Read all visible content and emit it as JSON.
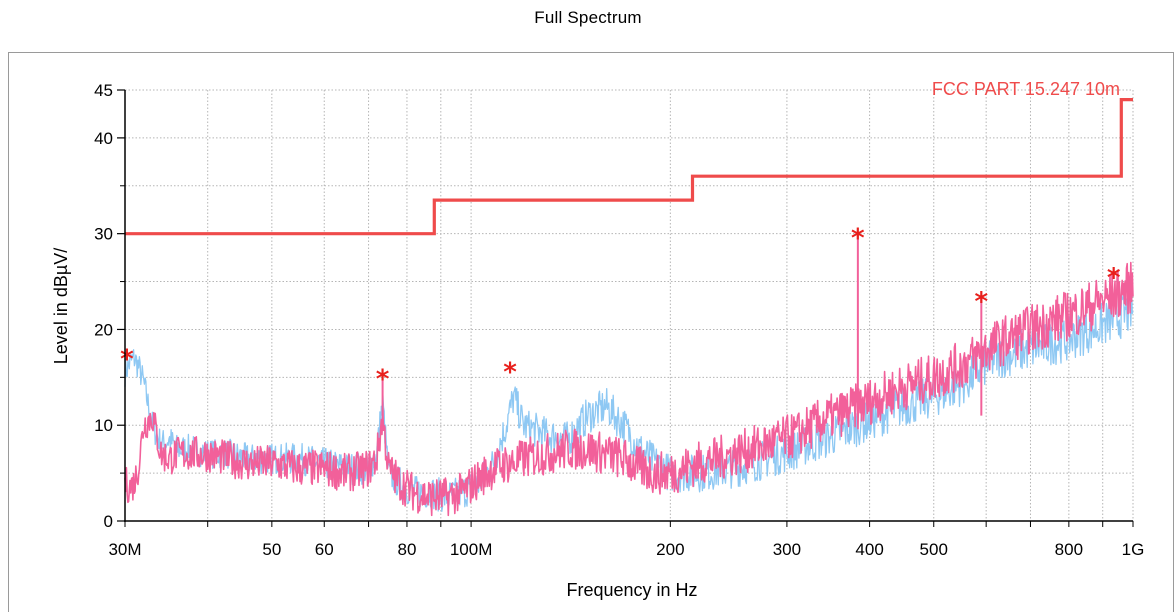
{
  "chart_data": {
    "type": "line",
    "title": "Full Spectrum",
    "xlabel": "Frequency in Hz",
    "ylabel": "Level in dBµV/",
    "x_scale": "log",
    "xlim": [
      30000000,
      1000000000
    ],
    "ylim": [
      0,
      45
    ],
    "grid": true,
    "y_ticks": [
      {
        "value": 0,
        "label": "0"
      },
      {
        "value": 10,
        "label": "10"
      },
      {
        "value": 20,
        "label": "20"
      },
      {
        "value": 30,
        "label": "30"
      },
      {
        "value": 40,
        "label": "40"
      },
      {
        "value": 45,
        "label": "45"
      }
    ],
    "y_minor_ticks": [
      5,
      15,
      25,
      35
    ],
    "x_ticks": [
      {
        "value": 30000000,
        "label": "30M"
      },
      {
        "value": 50000000,
        "label": "50"
      },
      {
        "value": 60000000,
        "label": "60"
      },
      {
        "value": 80000000,
        "label": "80"
      },
      {
        "value": 100000000,
        "label": "100M"
      },
      {
        "value": 200000000,
        "label": "200"
      },
      {
        "value": 300000000,
        "label": "300"
      },
      {
        "value": 400000000,
        "label": "400"
      },
      {
        "value": 500000000,
        "label": "500"
      },
      {
        "value": 800000000,
        "label": "800"
      },
      {
        "value": 1000000000,
        "label": "1G"
      }
    ],
    "x_gridlines": [
      30000000,
      40000000,
      50000000,
      60000000,
      70000000,
      80000000,
      90000000,
      100000000,
      200000000,
      300000000,
      400000000,
      500000000,
      600000000,
      700000000,
      800000000,
      900000000,
      1000000000
    ],
    "series": [
      {
        "name": "FCC PART 15.247 10m",
        "role": "limit",
        "color": "#ef4b4b",
        "x": [
          30000000,
          88000000,
          88000000,
          216000000,
          216000000,
          960000000,
          960000000,
          1000000000
        ],
        "y": [
          30,
          30,
          33.5,
          33.5,
          36,
          36,
          44,
          44
        ]
      },
      {
        "role": "trace",
        "color": "#8ec8f3",
        "x": [
          30000000,
          30500000,
          31000000,
          31500000,
          32000000,
          33000000,
          34000000,
          35000000,
          36000000,
          38000000,
          40000000,
          43000000,
          46000000,
          50000000,
          55000000,
          60000000,
          65000000,
          70000000,
          72000000,
          73500000,
          75000000,
          78000000,
          82000000,
          87000000,
          92000000,
          97000000,
          103000000,
          108000000,
          113000000,
          116000000,
          120000000,
          130000000,
          140000000,
          150000000,
          160000000,
          170000000,
          180000000,
          190000000,
          200000000,
          220000000,
          250000000,
          280000000,
          310000000,
          340000000,
          370000000,
          400000000,
          450000000,
          500000000,
          560000000,
          590000000,
          620000000,
          700000000,
          800000000,
          900000000,
          1000000000
        ],
        "y": [
          15.5,
          16.5,
          17,
          16,
          14.5,
          10,
          8,
          8.5,
          7.5,
          7.5,
          7,
          7,
          6.5,
          6.5,
          6.5,
          6,
          5.5,
          5.5,
          7,
          12.5,
          5,
          4,
          3,
          3,
          2.5,
          3,
          4,
          6,
          10,
          13,
          10,
          9,
          8.5,
          11,
          12,
          10,
          7.5,
          6,
          5,
          5,
          5.5,
          6.5,
          7.5,
          8.5,
          9.5,
          10.5,
          12,
          13,
          14.5,
          16,
          17,
          18,
          19,
          20.5,
          22
        ]
      },
      {
        "role": "trace",
        "color": "#f2609a",
        "x": [
          30000000,
          30500000,
          31000000,
          31500000,
          32000000,
          33000000,
          34000000,
          35000000,
          36000000,
          38000000,
          40000000,
          43000000,
          46000000,
          50000000,
          55000000,
          60000000,
          65000000,
          70000000,
          72000000,
          73500000,
          75000000,
          78000000,
          82000000,
          87000000,
          92000000,
          97000000,
          103000000,
          108000000,
          113000000,
          116000000,
          120000000,
          130000000,
          140000000,
          150000000,
          160000000,
          170000000,
          180000000,
          190000000,
          200000000,
          220000000,
          250000000,
          280000000,
          310000000,
          340000000,
          370000000,
          385000000,
          400000000,
          450000000,
          500000000,
          560000000,
          590000000,
          620000000,
          700000000,
          800000000,
          900000000,
          1000000000
        ],
        "y": [
          4,
          3.5,
          4,
          6,
          10,
          11,
          7,
          6.5,
          7,
          7,
          7,
          6.5,
          6,
          6,
          5.5,
          5.5,
          5,
          5.5,
          6.5,
          11,
          5.5,
          4,
          3,
          2.5,
          2.5,
          3,
          4.5,
          5.5,
          6,
          6,
          6.5,
          7,
          7.5,
          7.5,
          7,
          6.5,
          5.5,
          5,
          5,
          6,
          7,
          8,
          9,
          10.5,
          11.5,
          12,
          12.5,
          14,
          15,
          16.5,
          17.5,
          18.5,
          20,
          21.5,
          23,
          24.5
        ]
      }
    ],
    "marker_series": {
      "symbol": "*",
      "color": "#e8201c",
      "points": [
        {
          "x": 30200000,
          "y": 17.3
        },
        {
          "x": 73500000,
          "y": 15.2
        },
        {
          "x": 114500000,
          "y": 15.9
        },
        {
          "x": 384000000,
          "y": 29.9
        },
        {
          "x": 590000000,
          "y": 23.3
        },
        {
          "x": 935000000,
          "y": 25.8
        }
      ]
    },
    "spikes": [
      {
        "x": 73500000,
        "y": 15.2
      },
      {
        "x": 384000000,
        "y": 29.9
      },
      {
        "x": 590000000,
        "y": 23.3
      }
    ]
  }
}
